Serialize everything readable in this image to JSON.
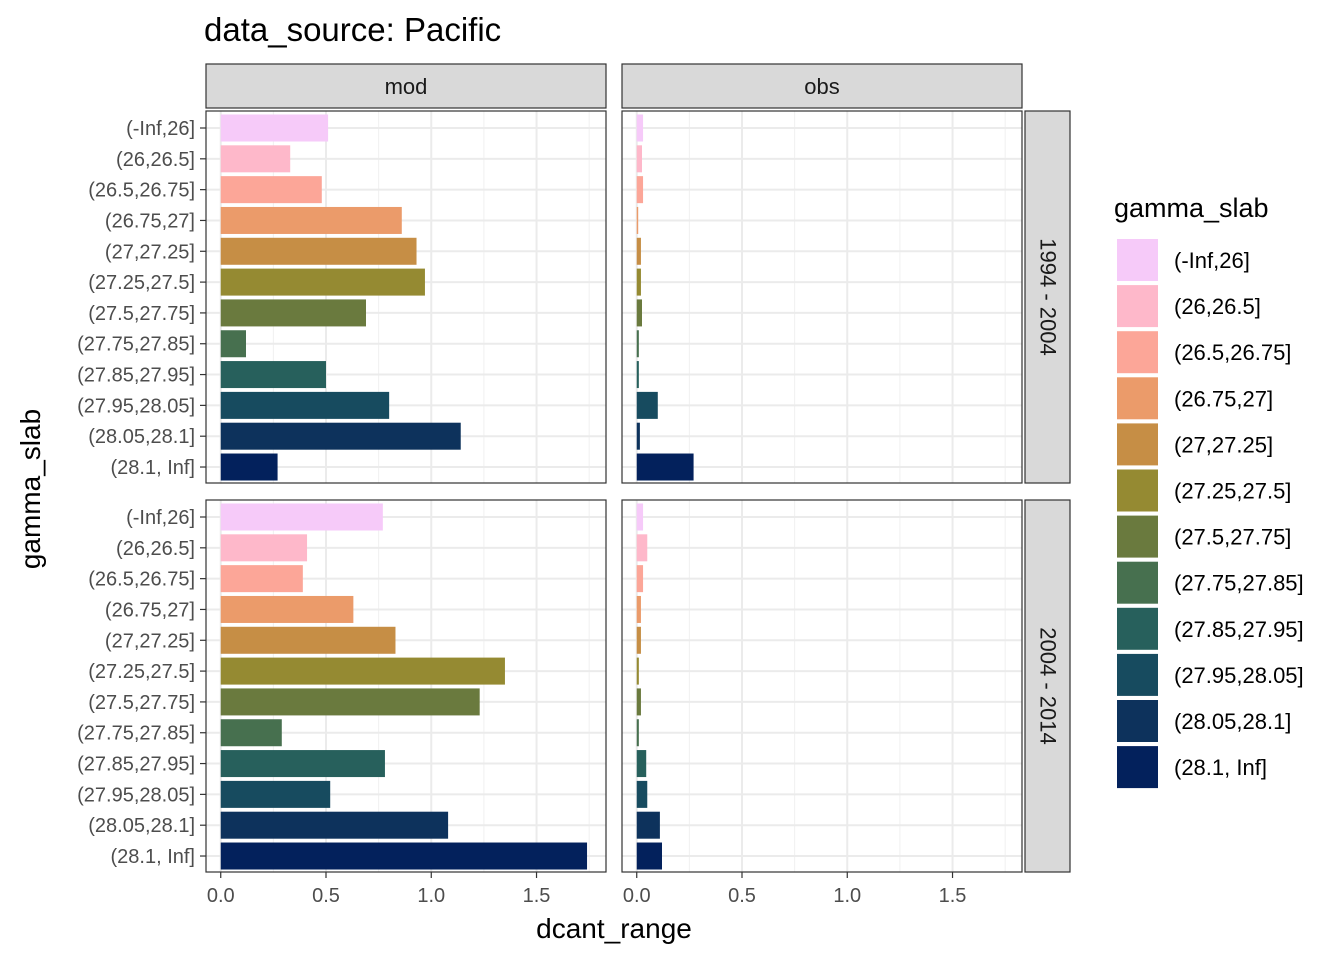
{
  "chart_data": {
    "type": "bar",
    "orientation": "horizontal",
    "title": "data_source: Pacific",
    "xlabel": "dcant_range",
    "ylabel": "gamma_slab",
    "xlim": [
      -0.07,
      1.83
    ],
    "x_ticks": [
      "0.0",
      "0.5",
      "1.0",
      "1.5"
    ],
    "x_tick_values": [
      0,
      0.5,
      1.0,
      1.5
    ],
    "grid": true,
    "legend_position": "right",
    "legend_title": "gamma_slab",
    "categories": [
      "(-Inf,26]",
      "(26,26.5]",
      "(26.5,26.75]",
      "(26.75,27]",
      "(27,27.25]",
      "(27.25,27.5]",
      "(27.5,27.75]",
      "(27.75,27.85]",
      "(27.85,27.95]",
      "(27.95,28.05]",
      "(28.05,28.1]",
      "(28.1, Inf]"
    ],
    "colors": [
      "#F6CAF9",
      "#FEB8CA",
      "#FCA698",
      "#EB9B6A",
      "#C68E45",
      "#958A32",
      "#6A7A3E",
      "#47704F",
      "#27605C",
      "#174B5F",
      "#0D325C",
      "#03215C"
    ],
    "col_facets": [
      "mod",
      "obs"
    ],
    "row_facets": [
      "1994 - 2004",
      "2004 - 2014"
    ],
    "panels": [
      {
        "row": "1994 - 2004",
        "col": "mod",
        "values": [
          0.51,
          0.33,
          0.48,
          0.86,
          0.93,
          0.97,
          0.69,
          0.12,
          0.5,
          0.8,
          1.14,
          0.27
        ]
      },
      {
        "row": "1994 - 2004",
        "col": "obs",
        "values": [
          0.03,
          0.025,
          0.03,
          0.007,
          0.02,
          0.02,
          0.025,
          0.01,
          0.01,
          0.1,
          0.015,
          0.27
        ]
      },
      {
        "row": "2004 - 2014",
        "col": "mod",
        "values": [
          0.77,
          0.41,
          0.39,
          0.63,
          0.83,
          1.35,
          1.23,
          0.29,
          0.78,
          0.52,
          1.08,
          1.74
        ]
      },
      {
        "row": "2004 - 2014",
        "col": "obs",
        "values": [
          0.03,
          0.05,
          0.03,
          0.02,
          0.02,
          0.01,
          0.02,
          0.01,
          0.045,
          0.05,
          0.11,
          0.12
        ]
      }
    ]
  }
}
